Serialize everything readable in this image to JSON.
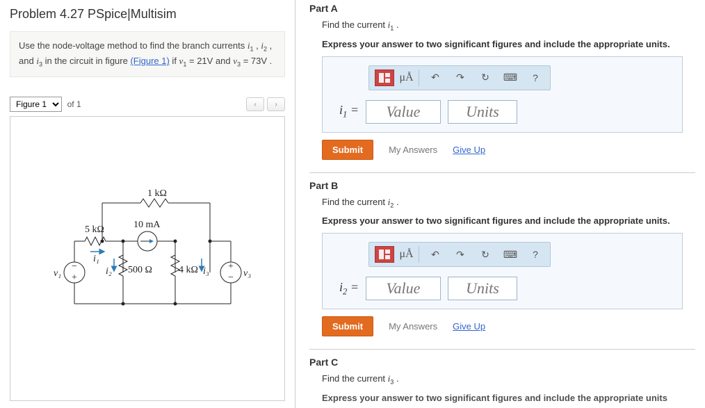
{
  "left": {
    "title": "Problem 4.27 PSpice|Multisim",
    "instructions_html": "Use the node-voltage method to find the branch currents <span class='ital'>i</span><sub>1</sub> , <span class='ital'>i</span><sub>2</sub> , and <span class='ital'>i</span><sub>3</sub> in the circuit in figure <a href='#'>(Figure 1)</a> if <span class='ital'>v</span><sub>1</sub> = 21V and <span class='ital'>v</span><sub>3</sub> = 73V .",
    "figure_select": "Figure 1",
    "figure_of": "of 1"
  },
  "circuit": {
    "r_top": "1 kΩ",
    "r_left": "5 kΩ",
    "i_src": "10 mA",
    "r_mid": "500 Ω",
    "r_right": "4 kΩ",
    "v1": "v₁",
    "v3": "v₃",
    "i1": "i₁",
    "i2": "i₂",
    "i3": "i₃"
  },
  "parts": {
    "A": {
      "heading": "Part A",
      "prompt_html": "Find the current <span class='ital'>i</span><sub>1</sub> .",
      "instruction": "Express your answer to two significant figures and include the appropriate units.",
      "var_html": "<span class='ital'>i</span><sub>1</sub> =",
      "value_ph": "Value",
      "units_ph": "Units",
      "units_tool": "μÅ",
      "submit": "Submit",
      "myans": "My Answers",
      "giveup": "Give Up"
    },
    "B": {
      "heading": "Part B",
      "prompt_html": "Find the current <span class='ital'>i</span><sub>2</sub> .",
      "instruction": "Express your answer to two significant figures and include the appropriate units.",
      "var_html": "<span class='ital'>i</span><sub>2</sub> =",
      "value_ph": "Value",
      "units_ph": "Units",
      "units_tool": "μÅ",
      "submit": "Submit",
      "myans": "My Answers",
      "giveup": "Give Up"
    },
    "C": {
      "heading": "Part C",
      "prompt_html": "Find the current <span class='ital'>i</span><sub>3</sub> .",
      "instruction_cut": "Express your answer to two significant figures and include the appropriate units"
    }
  },
  "colors": {
    "accent_orange": "#e26b1f",
    "link_blue": "#3366cc",
    "toolbar_bg": "#d5e5f2",
    "answer_bg": "#f5f9fd",
    "arrow_blue": "#2e7bb5"
  }
}
